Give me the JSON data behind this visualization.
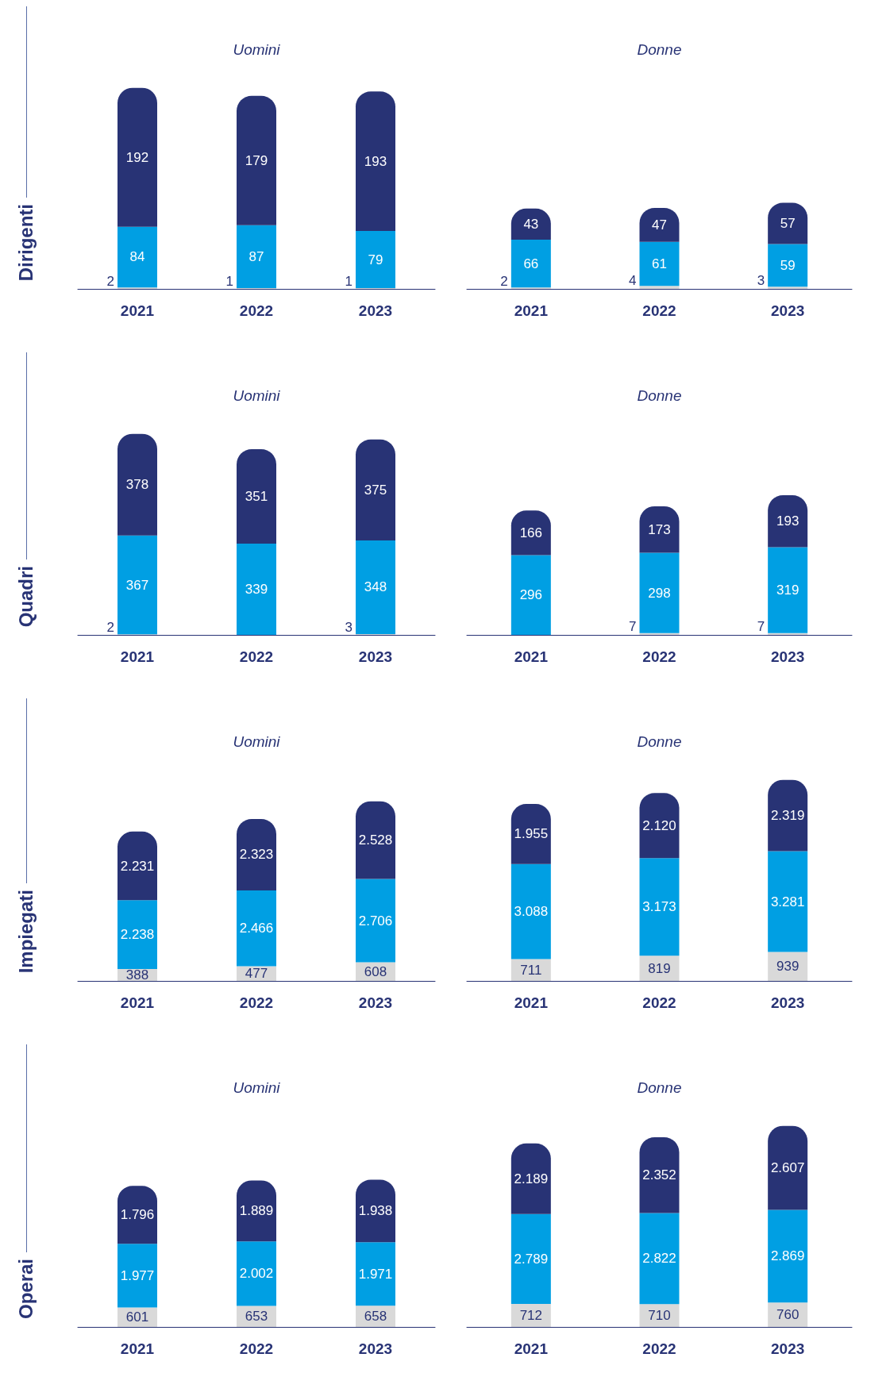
{
  "chart_data": [
    {
      "type": "bar",
      "stacked": true,
      "title": "Uomini",
      "ylabel": "Dirigenti",
      "categories": [
        "2021",
        "2022",
        "2023"
      ],
      "series": [
        {
          "color": "#d9d9d9",
          "values": [
            2,
            1,
            1
          ],
          "value_labels": [
            "2",
            "1",
            "1"
          ]
        },
        {
          "color": "#009fe3",
          "values": [
            84,
            87,
            79
          ],
          "value_labels": [
            "84",
            "87",
            "79"
          ]
        },
        {
          "color": "#283375",
          "values": [
            192,
            179,
            193
          ],
          "value_labels": [
            "192",
            "179",
            "193"
          ]
        }
      ]
    },
    {
      "type": "bar",
      "stacked": true,
      "title": "Donne",
      "categories": [
        "2021",
        "2022",
        "2023"
      ],
      "series": [
        {
          "color": "#d9d9d9",
          "values": [
            2,
            4,
            3
          ],
          "value_labels": [
            "2",
            "4",
            "3"
          ]
        },
        {
          "color": "#009fe3",
          "values": [
            66,
            61,
            59
          ],
          "value_labels": [
            "66",
            "61",
            "59"
          ]
        },
        {
          "color": "#283375",
          "values": [
            43,
            47,
            57
          ],
          "value_labels": [
            "43",
            "47",
            "57"
          ]
        }
      ]
    },
    {
      "type": "bar",
      "stacked": true,
      "title": "Uomini",
      "ylabel": "Quadri",
      "categories": [
        "2021",
        "2022",
        "2023"
      ],
      "series": [
        {
          "color": "#d9d9d9",
          "values": [
            2,
            null,
            3
          ],
          "value_labels": [
            "2",
            null,
            "3"
          ]
        },
        {
          "color": "#009fe3",
          "values": [
            367,
            339,
            348
          ],
          "value_labels": [
            "367",
            "339",
            "348"
          ]
        },
        {
          "color": "#283375",
          "values": [
            378,
            351,
            375
          ],
          "value_labels": [
            "378",
            "351",
            "375"
          ]
        }
      ]
    },
    {
      "type": "bar",
      "stacked": true,
      "title": "Donne",
      "categories": [
        "2021",
        "2022",
        "2023"
      ],
      "series": [
        {
          "color": "#d9d9d9",
          "values": [
            null,
            7,
            7
          ],
          "value_labels": [
            null,
            "7",
            "7"
          ]
        },
        {
          "color": "#009fe3",
          "values": [
            296,
            298,
            319
          ],
          "value_labels": [
            "296",
            "298",
            "319"
          ]
        },
        {
          "color": "#283375",
          "values": [
            166,
            173,
            193
          ],
          "value_labels": [
            "166",
            "173",
            "193"
          ]
        }
      ]
    },
    {
      "type": "bar",
      "stacked": true,
      "title": "Uomini",
      "ylabel": "Impiegati",
      "categories": [
        "2021",
        "2022",
        "2023"
      ],
      "series": [
        {
          "color": "#d9d9d9",
          "values": [
            388,
            477,
            608
          ],
          "value_labels": [
            "388",
            "477",
            "608"
          ]
        },
        {
          "color": "#009fe3",
          "values": [
            2238,
            2466,
            2706
          ],
          "value_labels": [
            "2.238",
            "2.466",
            "2.706"
          ]
        },
        {
          "color": "#283375",
          "values": [
            2231,
            2323,
            2528
          ],
          "value_labels": [
            "2.231",
            "2.323",
            "2.528"
          ]
        }
      ]
    },
    {
      "type": "bar",
      "stacked": true,
      "title": "Donne",
      "categories": [
        "2021",
        "2022",
        "2023"
      ],
      "series": [
        {
          "color": "#d9d9d9",
          "values": [
            711,
            819,
            939
          ],
          "value_labels": [
            "711",
            "819",
            "939"
          ]
        },
        {
          "color": "#009fe3",
          "values": [
            3088,
            3173,
            3281
          ],
          "value_labels": [
            "3.088",
            "3.173",
            "3.281"
          ]
        },
        {
          "color": "#283375",
          "values": [
            1955,
            2120,
            2319
          ],
          "value_labels": [
            "1.955",
            "2.120",
            "2.319"
          ]
        }
      ]
    },
    {
      "type": "bar",
      "stacked": true,
      "title": "Uomini",
      "ylabel": "Operai",
      "categories": [
        "2021",
        "2022",
        "2023"
      ],
      "series": [
        {
          "color": "#d9d9d9",
          "values": [
            601,
            653,
            658
          ],
          "value_labels": [
            "601",
            "653",
            "658"
          ]
        },
        {
          "color": "#009fe3",
          "values": [
            1977,
            2002,
            1971
          ],
          "value_labels": [
            "1.977",
            "2.002",
            "1.971"
          ]
        },
        {
          "color": "#283375",
          "values": [
            1796,
            1889,
            1938
          ],
          "value_labels": [
            "1.796",
            "1.889",
            "1.938"
          ]
        }
      ]
    },
    {
      "type": "bar",
      "stacked": true,
      "title": "Donne",
      "categories": [
        "2021",
        "2022",
        "2023"
      ],
      "series": [
        {
          "color": "#d9d9d9",
          "values": [
            712,
            710,
            760
          ],
          "value_labels": [
            "712",
            "710",
            "760"
          ]
        },
        {
          "color": "#009fe3",
          "values": [
            2789,
            2822,
            2869
          ],
          "value_labels": [
            "2.789",
            "2.822",
            "2.869"
          ]
        },
        {
          "color": "#283375",
          "values": [
            2189,
            2352,
            2607
          ],
          "value_labels": [
            "2.189",
            "2.352",
            "2.607"
          ]
        }
      ]
    }
  ]
}
